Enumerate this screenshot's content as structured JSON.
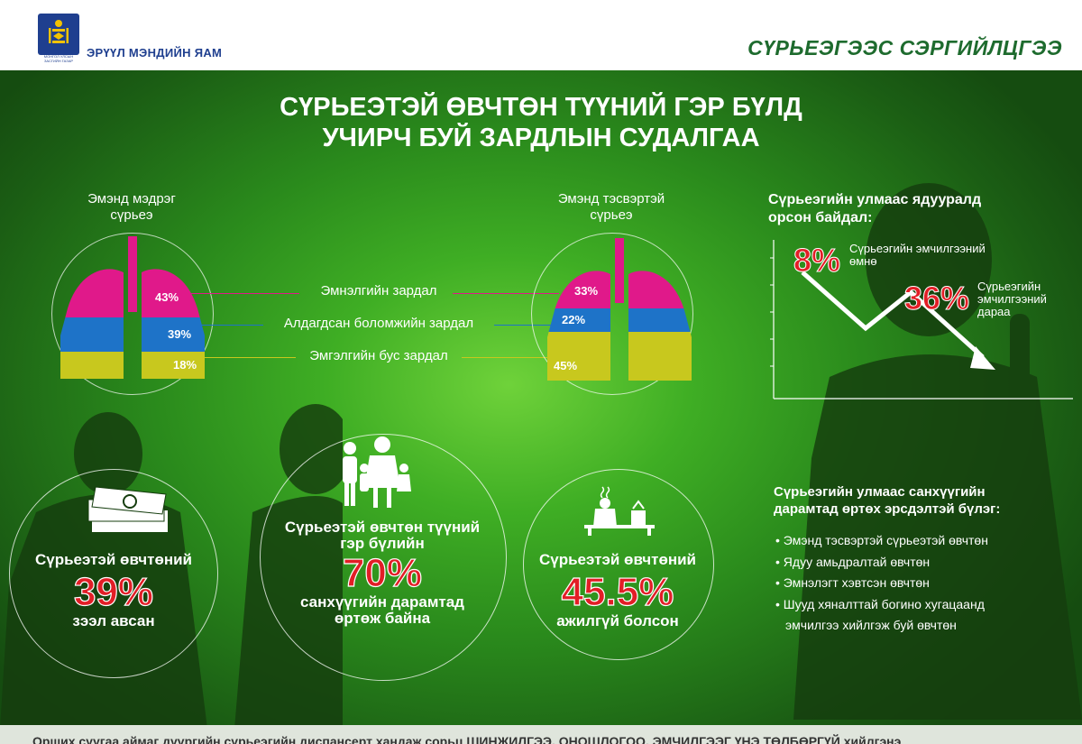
{
  "header": {
    "logo_top_text": "МОНГОЛ УЛСЫН",
    "logo_bottom_text": "ЗАСГИЙН ГАЗАР",
    "ministry": "ЭРҮҮЛ МЭНДИЙН ЯАМ",
    "brand": "СҮРЬЕЭГЭЭС СЭРГИЙЛЦГЭЭ"
  },
  "title": {
    "line1": "СҮРЬЕЭТЭЙ ӨВЧТӨН ТҮҮНИЙ ГЭР БҮЛД",
    "line2": "УЧИРЧ БУЙ ЗАРДЛЫН СУДАЛГАА"
  },
  "lungs": {
    "left_title_1": "Эмэнд мэдрэг",
    "left_title_2": "сүрьеэ",
    "right_title_1": "Эмэнд тэсвэртэй",
    "right_title_2": "сүрьеэ",
    "labels": {
      "hospital": "Эмнэлгийн зардал",
      "lost": "Алдагдсан боломжийн зардал",
      "nonmedical": "Эмгэлгийн бус зардал"
    },
    "left": {
      "hospital": "43%",
      "lost": "39%",
      "nonmedical": "18%"
    },
    "right": {
      "hospital": "33%",
      "lost": "22%",
      "nonmedical": "45%"
    },
    "colors": {
      "hospital": "#e0198a",
      "lost": "#1e73c8",
      "nonmedical": "#c8c81e"
    }
  },
  "poverty": {
    "title_1": "Сүрьеэгийн улмаас ядууралд",
    "title_2": "орсон байдал:",
    "before_value": "8%",
    "before_label_1": "Сүрьеэгийн эмчилгээний",
    "before_label_2": "өмнө",
    "after_value": "36%",
    "after_label_1": "Сүрьеэгийн",
    "after_label_2": "эмчилгээний",
    "after_label_3": "дараа"
  },
  "stats": {
    "loan_line1": "Сүрьеэтэй өвчтөний",
    "loan_value": "39%",
    "loan_line2": "зээл авсан",
    "family_line1": "Сүрьеэтэй өвчтөн түүний",
    "family_line2": "гэр бүлийн",
    "family_value": "70%",
    "family_line3": "санхүүгийн дарамтад",
    "family_line4": "өртөж байна",
    "unemp_line1": "Сүрьеэтэй өвчтөний",
    "unemp_value": "45.5%",
    "unemp_line2": "ажилгүй болсон"
  },
  "risk": {
    "title_1": "Сүрьеэгийн улмаас санхүүгийн",
    "title_2": "дарамтад өртөх эрсдэлтэй бүлэг:",
    "items": [
      "Эмэнд тэсвэртэй сүрьеэтэй өвчтөн",
      "Ядуу амьдралтай өвчтөн",
      "Эмнэлэгт хэвтсэн өвчтөн",
      "Шууд хяналттай богино хугацаанд"
    ],
    "item_cont": "эмчилгээ хийлгэж буй өвчтөн"
  },
  "footer": {
    "text": "Орших суугаа аймаг дүүргийн сүрьеэгийн диспансерт хандаж сорьц ШИНЖИЛГЭЭ, ОНОШЛОГОО, ЭМЧИЛГЭЭГ ҮНЭ ТӨЛБӨРГҮЙ хийлгэнэ"
  }
}
